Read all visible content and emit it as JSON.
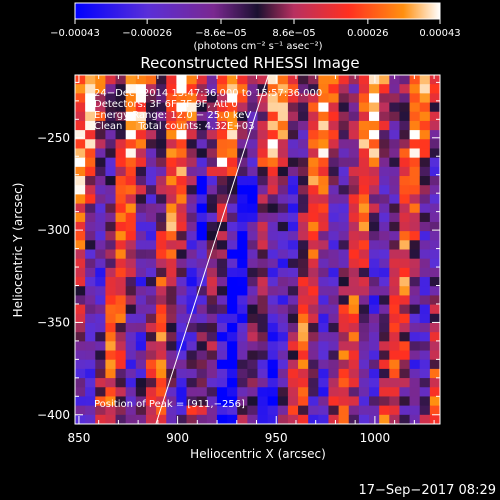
{
  "chart_data": {
    "type": "heatmap",
    "title": "Reconstructed RHESSI Image",
    "xlabel": "Heliocentric X (arcsec)",
    "ylabel": "Heliocentric Y (arcsec)",
    "xlim": [
      848,
      1033
    ],
    "ylim": [
      -405,
      -216
    ],
    "x_ticks": [
      850,
      900,
      950,
      1000
    ],
    "x_tick_labels": [
      "850",
      "900",
      "950",
      "1000"
    ],
    "y_ticks": [
      -400,
      -350,
      -300,
      -250
    ],
    "y_tick_labels": [
      "−400",
      "−350",
      "−300",
      "−250"
    ],
    "colorbar": {
      "range": [
        -0.00043,
        0.00043
      ],
      "ticks": [
        -0.00043,
        -0.00026,
        -8.6e-05,
        8.6e-05,
        0.00026,
        0.00043
      ],
      "tick_labels": [
        "−0.00043",
        "−0.00026",
        "−8.6e−05",
        "8.6e−05",
        "0.00026",
        "0.00043"
      ],
      "unit_label": "(photons cm⁻² s⁻¹ asec⁻²)",
      "colors": [
        "#0000ff",
        "#5a2fd8",
        "#7a2890",
        "#1a1030",
        "#b83060",
        "#ff3020",
        "#ff9010",
        "#ffffff"
      ]
    },
    "annotations": {
      "date_range": "24−Dec−2014 15:47:36.000 to 15:57:36.000",
      "detectors": "Detectors: 3F 6F 7F 9F, Att 0",
      "energy": "Energy Range: 12.0 − 25.0 keV",
      "method": "Clean     Total counts: 4.32E+03",
      "peak": "Position of Peak = [911,−256]"
    },
    "limb_line": {
      "x": [
        889,
        946
      ],
      "y": [
        -405,
        -216
      ]
    },
    "peak_position": [
      911,
      -256
    ]
  },
  "footer": {
    "timestamp": "17−Sep−2017 08:29"
  }
}
